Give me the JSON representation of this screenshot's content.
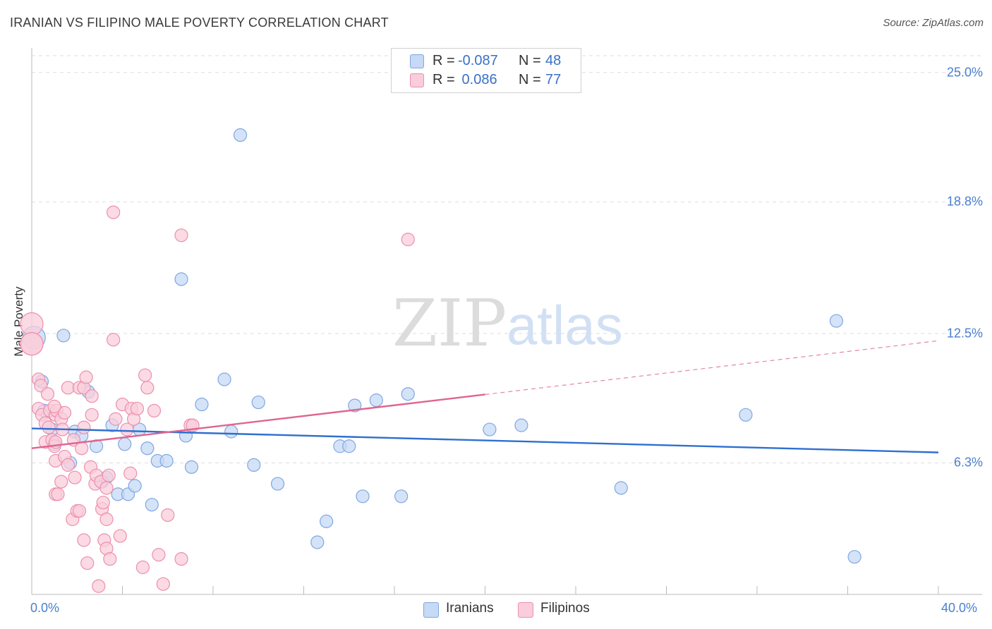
{
  "title": "IRANIAN VS FILIPINO MALE POVERTY CORRELATION CHART",
  "source": "Source: ZipAtlas.com",
  "watermark": {
    "zip": "ZIP",
    "atlas": "atlas"
  },
  "legend": {
    "rows": [
      {
        "r_label": "R =",
        "r_value": "-0.087",
        "n_label": "N =",
        "n_value": "48"
      },
      {
        "r_label": "R =",
        "r_value": " 0.086",
        "n_label": "N =",
        "n_value": "77"
      }
    ]
  },
  "bottom_legend": {
    "iranians": "Iranians",
    "filipinos": "Filipinos"
  },
  "colors": {
    "iranians_fill": "#c6d9f5",
    "iranians_stroke": "#7fa7e0",
    "iranians_line": "#2f6fd0",
    "filipinos_fill": "#f9cddb",
    "filipinos_stroke": "#ec8fae",
    "filipinos_line": "#e0648f",
    "tick_text": "#4a7fd0",
    "grid": "#dddddd"
  },
  "chart_data": {
    "type": "scatter",
    "title": "IRANIAN VS FILIPINO MALE POVERTY CORRELATION CHART",
    "xlabel": "",
    "ylabel": "Male Poverty",
    "xlim": [
      0,
      40
    ],
    "ylim": [
      0,
      25.8
    ],
    "x_tick_labels": [
      "0.0%",
      "40.0%"
    ],
    "y_ticks": [
      {
        "value": 6.3,
        "label": "6.3%"
      },
      {
        "value": 12.5,
        "label": "12.5%"
      },
      {
        "value": 18.8,
        "label": "18.8%"
      },
      {
        "value": 25.0,
        "label": "25.0%"
      }
    ],
    "grid": "horizontal dashed",
    "series": [
      {
        "name": "Iranians",
        "r": -0.087,
        "n": 48,
        "trend": {
          "x": [
            0,
            40
          ],
          "y": [
            7.95,
            6.8
          ],
          "dashed_from": null
        },
        "points": [
          [
            0.1,
            12.3
          ],
          [
            0.45,
            10.2
          ],
          [
            0.55,
            8.8
          ],
          [
            0.9,
            7.9
          ],
          [
            1.0,
            7.2
          ],
          [
            1.4,
            12.4
          ],
          [
            1.7,
            6.3
          ],
          [
            1.9,
            7.8
          ],
          [
            2.2,
            7.6
          ],
          [
            2.5,
            9.7
          ],
          [
            2.85,
            7.1
          ],
          [
            3.1,
            5.4
          ],
          [
            3.3,
            5.6
          ],
          [
            3.55,
            8.1
          ],
          [
            3.8,
            4.8
          ],
          [
            4.1,
            7.2
          ],
          [
            4.25,
            4.8
          ],
          [
            4.55,
            5.2
          ],
          [
            4.75,
            7.9
          ],
          [
            5.1,
            7.0
          ],
          [
            5.3,
            4.3
          ],
          [
            5.55,
            6.4
          ],
          [
            5.95,
            6.4
          ],
          [
            6.6,
            15.1
          ],
          [
            6.8,
            7.6
          ],
          [
            7.05,
            6.1
          ],
          [
            7.5,
            9.1
          ],
          [
            8.5,
            10.3
          ],
          [
            8.8,
            7.8
          ],
          [
            9.2,
            22.0
          ],
          [
            9.8,
            6.2
          ],
          [
            10.0,
            9.2
          ],
          [
            10.85,
            5.3
          ],
          [
            12.6,
            2.5
          ],
          [
            13.0,
            3.5
          ],
          [
            13.6,
            7.1
          ],
          [
            14.0,
            7.1
          ],
          [
            14.25,
            9.05
          ],
          [
            14.6,
            4.7
          ],
          [
            15.2,
            9.3
          ],
          [
            16.3,
            4.7
          ],
          [
            16.6,
            9.6
          ],
          [
            20.2,
            7.9
          ],
          [
            21.6,
            8.1
          ],
          [
            26.0,
            5.1
          ],
          [
            31.5,
            8.6
          ],
          [
            35.5,
            13.1
          ],
          [
            36.3,
            1.8
          ]
        ]
      },
      {
        "name": "Filipinos",
        "r": 0.086,
        "n": 77,
        "trend": {
          "x": [
            0,
            40
          ],
          "y": [
            7.0,
            12.15
          ],
          "dashed_from": 20.0
        },
        "points": [
          [
            0.0,
            12.95
          ],
          [
            0.0,
            12.0
          ],
          [
            0.0,
            12.0
          ],
          [
            0.3,
            10.3
          ],
          [
            0.3,
            8.9
          ],
          [
            0.4,
            10.0
          ],
          [
            0.45,
            8.6
          ],
          [
            0.6,
            8.2
          ],
          [
            0.6,
            7.3
          ],
          [
            0.7,
            9.6
          ],
          [
            0.75,
            8.0
          ],
          [
            0.8,
            8.8
          ],
          [
            0.9,
            7.4
          ],
          [
            1.0,
            7.1
          ],
          [
            1.05,
            7.3
          ],
          [
            1.05,
            6.4
          ],
          [
            1.05,
            8.6
          ],
          [
            1.05,
            4.8
          ],
          [
            1.1,
            8.8
          ],
          [
            1.15,
            4.8
          ],
          [
            1.3,
            5.4
          ],
          [
            1.3,
            8.4
          ],
          [
            1.35,
            7.9
          ],
          [
            1.45,
            6.6
          ],
          [
            1.45,
            8.7
          ],
          [
            1.6,
            6.2
          ],
          [
            1.6,
            9.9
          ],
          [
            1.8,
            3.6
          ],
          [
            1.85,
            7.4
          ],
          [
            1.9,
            5.6
          ],
          [
            2.0,
            4.0
          ],
          [
            2.1,
            4.0
          ],
          [
            2.1,
            9.9
          ],
          [
            2.2,
            7.0
          ],
          [
            2.3,
            2.6
          ],
          [
            2.3,
            9.9
          ],
          [
            2.4,
            10.4
          ],
          [
            2.45,
            1.5
          ],
          [
            2.6,
            6.1
          ],
          [
            2.65,
            8.6
          ],
          [
            2.65,
            9.5
          ],
          [
            2.8,
            5.3
          ],
          [
            2.85,
            5.7
          ],
          [
            2.95,
            0.4
          ],
          [
            3.05,
            5.4
          ],
          [
            3.1,
            4.1
          ],
          [
            3.15,
            4.4
          ],
          [
            3.2,
            2.6
          ],
          [
            3.3,
            2.2
          ],
          [
            3.3,
            3.6
          ],
          [
            3.4,
            5.7
          ],
          [
            3.45,
            1.7
          ],
          [
            3.6,
            12.2
          ],
          [
            3.6,
            18.3
          ],
          [
            3.7,
            8.4
          ],
          [
            3.9,
            2.8
          ],
          [
            4.0,
            9.1
          ],
          [
            4.2,
            7.9
          ],
          [
            4.35,
            5.8
          ],
          [
            4.4,
            8.9
          ],
          [
            4.5,
            8.4
          ],
          [
            4.65,
            8.9
          ],
          [
            4.9,
            1.3
          ],
          [
            5.0,
            10.5
          ],
          [
            5.1,
            9.9
          ],
          [
            5.4,
            8.8
          ],
          [
            5.6,
            1.9
          ],
          [
            5.8,
            0.5
          ],
          [
            6.0,
            3.8
          ],
          [
            6.6,
            17.2
          ],
          [
            6.6,
            1.7
          ],
          [
            7.0,
            8.1
          ],
          [
            7.1,
            8.1
          ],
          [
            16.6,
            17.0
          ],
          [
            1.0,
            9.0
          ],
          [
            2.3,
            8.0
          ],
          [
            3.3,
            5.1
          ]
        ]
      }
    ]
  }
}
